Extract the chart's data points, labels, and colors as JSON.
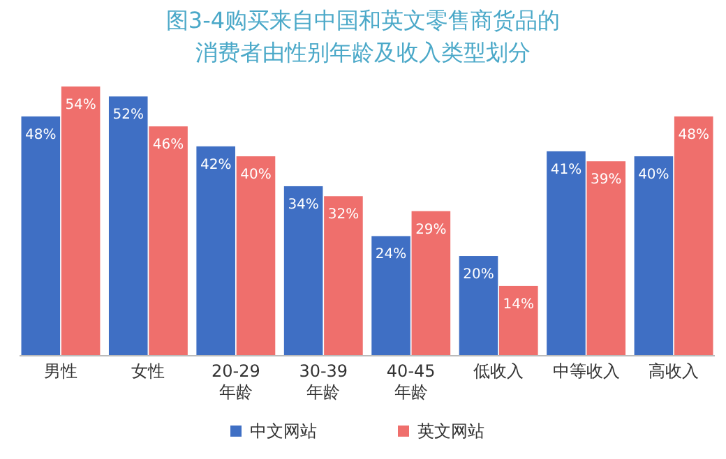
{
  "chart_data": {
    "type": "bar",
    "title": "图3-4购买来自中国和英文零售商货品的",
    "subtitle": "消费者由性别年龄及收入类型划分",
    "categories": [
      "男性",
      "女性",
      "20-29\n年龄",
      "30-39\n年龄",
      "40-45\n年龄",
      "低收入",
      "中等收入",
      "高收入"
    ],
    "series": [
      {
        "name": "中文网站",
        "color": "#3f6fc4",
        "values": [
          48,
          52,
          42,
          34,
          24,
          20,
          41,
          40
        ],
        "value_labels": [
          "48%",
          "52%",
          "42%",
          "34%",
          "24%",
          "20%",
          "41%",
          "40%"
        ]
      },
      {
        "name": "英文网站",
        "color": "#ef6f6c",
        "values": [
          54,
          46,
          40,
          32,
          29,
          14,
          39,
          48
        ],
        "value_labels": [
          "54%",
          "46%",
          "40%",
          "32%",
          "29%",
          "14%",
          "39%",
          "48%"
        ]
      }
    ],
    "legend": "bottom",
    "grid": false
  }
}
